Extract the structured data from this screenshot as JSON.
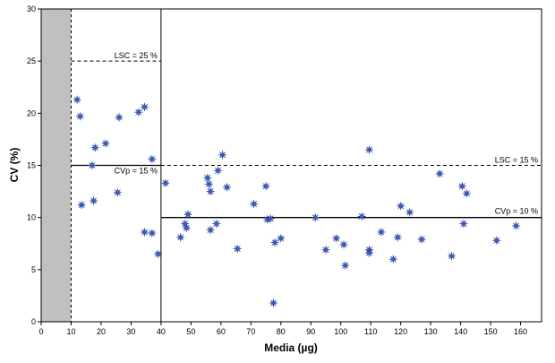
{
  "chart_data": {
    "type": "scatter",
    "xlabel": "Media (µg)",
    "ylabel": "CV (%)",
    "xlim": [
      0,
      167
    ],
    "ylim": [
      0,
      30
    ],
    "xticks": [
      "0",
      "10",
      "20",
      "30",
      "40",
      "50",
      "60",
      "70",
      "80",
      "90",
      "100",
      "110",
      "120",
      "130",
      "140",
      "150",
      "160"
    ],
    "yticks": [
      "0",
      "5",
      "10",
      "15",
      "20",
      "25",
      "30"
    ],
    "grid": false,
    "marker_color": "#3a5bbf",
    "shaded_region": {
      "x0": 0,
      "x1": 10,
      "color": "#c0c0c0"
    },
    "reference_lines": [
      {
        "label": "LSC = 25 %",
        "y": 25,
        "x_from": 10,
        "x_to": 40,
        "style": "dashed"
      },
      {
        "label": "CVp = 15 %",
        "y": 15,
        "x_from": 10,
        "x_to": 40,
        "style": "solid"
      },
      {
        "label": "LSC = 15 %",
        "y": 15,
        "x_from": 40,
        "x_to": 167,
        "style": "dashed"
      },
      {
        "label": "CVp = 10 %",
        "y": 10,
        "x_from": 40,
        "x_to": 167,
        "style": "solid"
      }
    ],
    "vertical_lines": [
      {
        "x": 10,
        "style": "dashed"
      },
      {
        "x": 40,
        "style": "solid"
      }
    ],
    "points": [
      {
        "x": 12,
        "y": 21.3
      },
      {
        "x": 13,
        "y": 19.7
      },
      {
        "x": 13.5,
        "y": 11.2
      },
      {
        "x": 17,
        "y": 15
      },
      {
        "x": 17.5,
        "y": 11.6
      },
      {
        "x": 18,
        "y": 16.7
      },
      {
        "x": 21.5,
        "y": 17.1
      },
      {
        "x": 25.5,
        "y": 12.4
      },
      {
        "x": 26,
        "y": 19.6
      },
      {
        "x": 32.5,
        "y": 20.1
      },
      {
        "x": 34.5,
        "y": 20.6
      },
      {
        "x": 34.5,
        "y": 8.6
      },
      {
        "x": 37,
        "y": 15.6
      },
      {
        "x": 37,
        "y": 8.5
      },
      {
        "x": 39,
        "y": 6.5
      },
      {
        "x": 41.5,
        "y": 13.3
      },
      {
        "x": 46.5,
        "y": 8.1
      },
      {
        "x": 48,
        "y": 9.4
      },
      {
        "x": 48.5,
        "y": 9
      },
      {
        "x": 49,
        "y": 10.3
      },
      {
        "x": 55.5,
        "y": 13.8
      },
      {
        "x": 56,
        "y": 13.2
      },
      {
        "x": 56.5,
        "y": 12.5
      },
      {
        "x": 56.5,
        "y": 8.8
      },
      {
        "x": 58.5,
        "y": 9.4
      },
      {
        "x": 59,
        "y": 14.5
      },
      {
        "x": 60.5,
        "y": 16
      },
      {
        "x": 62,
        "y": 12.9
      },
      {
        "x": 65.5,
        "y": 7
      },
      {
        "x": 71,
        "y": 11.3
      },
      {
        "x": 75,
        "y": 13
      },
      {
        "x": 75.5,
        "y": 9.8
      },
      {
        "x": 76.5,
        "y": 9.9
      },
      {
        "x": 77.5,
        "y": 1.8
      },
      {
        "x": 78,
        "y": 7.6
      },
      {
        "x": 80,
        "y": 8
      },
      {
        "x": 91.5,
        "y": 10
      },
      {
        "x": 95,
        "y": 6.9
      },
      {
        "x": 98.5,
        "y": 8
      },
      {
        "x": 101,
        "y": 7.4
      },
      {
        "x": 101.5,
        "y": 5.4
      },
      {
        "x": 107,
        "y": 10.1
      },
      {
        "x": 109.5,
        "y": 16.5
      },
      {
        "x": 109.5,
        "y": 6.9
      },
      {
        "x": 109.5,
        "y": 6.6
      },
      {
        "x": 113.5,
        "y": 8.6
      },
      {
        "x": 117.5,
        "y": 6
      },
      {
        "x": 119,
        "y": 8.1
      },
      {
        "x": 120,
        "y": 11.1
      },
      {
        "x": 123,
        "y": 10.5
      },
      {
        "x": 127,
        "y": 7.9
      },
      {
        "x": 133,
        "y": 14.2
      },
      {
        "x": 137,
        "y": 6.3
      },
      {
        "x": 140.5,
        "y": 13
      },
      {
        "x": 141,
        "y": 9.4
      },
      {
        "x": 142,
        "y": 12.3
      },
      {
        "x": 152,
        "y": 7.8
      },
      {
        "x": 158.5,
        "y": 9.2
      }
    ]
  }
}
